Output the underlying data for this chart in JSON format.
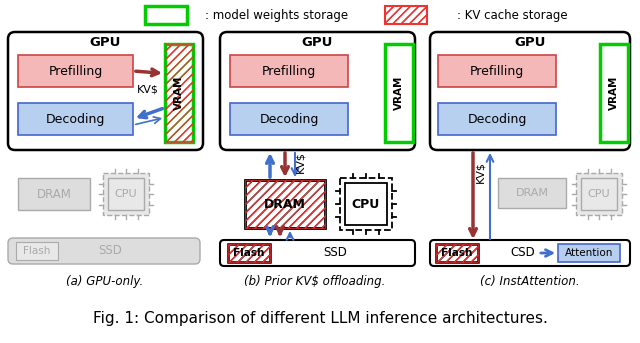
{
  "title": "Fig. 1: Comparison of different LLM inference architectures.",
  "legend_model_weights": ": model weights storage",
  "legend_kv_cache": ": KV cache storage",
  "bg_color": "#ffffff",
  "green_border_color": "#00cc00",
  "prefilling_fill": "#f5b8b8",
  "decoding_fill": "#b8d0f0",
  "attention_fill": "#b8cef0",
  "arrow_blue": "#4070cc",
  "arrow_red": "#993333",
  "hatch_red": "#ee3333",
  "gray_fill": "#dddddd",
  "gray_edge": "#aaaaaa",
  "gray_text": "#aaaaaa",
  "subtitle_a": "(a) GPU-only.",
  "subtitle_b": "(b) Prior KV$ offloading.",
  "subtitle_c": "(c) InstAttention."
}
